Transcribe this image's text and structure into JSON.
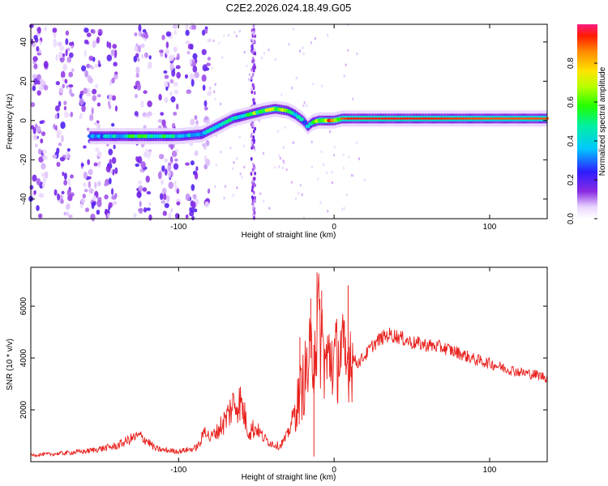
{
  "title": "C2E2.2026.024.18.49.G05",
  "chart_data": [
    {
      "type": "heatmap",
      "xlabel": "Height of straight line (km)",
      "ylabel": "Frequency (Hz)",
      "xlim": [
        -195,
        137
      ],
      "ylim": [
        -50,
        49
      ],
      "xticks": [
        -100,
        0,
        100
      ],
      "yticks": [
        -40,
        -20,
        0,
        20,
        40
      ],
      "colorbar": {
        "label": "Normalized spectral amplitude",
        "range": [
          0,
          1
        ],
        "ticks": [
          0.0,
          0.2,
          0.4,
          0.6,
          0.8
        ]
      },
      "ridge": {
        "x": [
          -157,
          -140,
          -120,
          -100,
          -85,
          -75,
          -65,
          -55,
          -50,
          -45,
          -38,
          -30,
          -25,
          -20,
          -17,
          -14,
          -10,
          -5,
          0,
          5,
          10,
          50,
          100,
          137
        ],
        "freq_hz": [
          -8,
          -8,
          -8,
          -8,
          -7,
          -3,
          1,
          3,
          4,
          5,
          6,
          5,
          3,
          0,
          -3,
          -1,
          0,
          0,
          0,
          1,
          1,
          1,
          1,
          1
        ],
        "amplitude": [
          0.35,
          0.45,
          0.6,
          0.45,
          0.4,
          0.4,
          0.5,
          0.55,
          0.65,
          0.7,
          0.75,
          0.55,
          0.5,
          0.4,
          0.35,
          0.55,
          0.8,
          0.85,
          0.8,
          0.9,
          0.95,
          0.95,
          0.9,
          0.9
        ]
      },
      "noise_x_range": [
        -195,
        -80
      ],
      "noise_columns_x": [
        -52
      ]
    },
    {
      "type": "line",
      "xlabel": "Height of straight line (km)",
      "ylabel": "SNR (10 * v/v)",
      "xlim": [
        -195,
        137
      ],
      "ylim": [
        0,
        7500
      ],
      "xticks": [
        -100,
        0,
        100
      ],
      "yticks": [
        2000,
        4000,
        6000
      ],
      "series": [
        {
          "name": "SNR",
          "color": "#e8201c",
          "x": [
            -195,
            -180,
            -160,
            -140,
            -130,
            -125,
            -120,
            -115,
            -110,
            -100,
            -90,
            -86,
            -83,
            -80,
            -75,
            -70,
            -65,
            -60,
            -55,
            -50,
            -45,
            -40,
            -35,
            -30,
            -25,
            -22,
            -20,
            -17,
            -14,
            -12,
            -10,
            -8,
            -6,
            -4,
            -2,
            0,
            2,
            4,
            6,
            8,
            10,
            12,
            15,
            20,
            25,
            30,
            35,
            40,
            50,
            60,
            70,
            80,
            90,
            100,
            110,
            120,
            130,
            137
          ],
          "y": [
            250,
            300,
            400,
            600,
            900,
            1000,
            800,
            500,
            450,
            400,
            500,
            700,
            1300,
            900,
            1200,
            1600,
            2200,
            2300,
            1200,
            1300,
            900,
            700,
            600,
            1000,
            2000,
            2600,
            3000,
            3600,
            4200,
            4800,
            5200,
            4800,
            3800,
            3800,
            4200,
            3800,
            4000,
            4300,
            4000,
            3500,
            4400,
            4000,
            3800,
            4100,
            4500,
            4750,
            4900,
            4850,
            4600,
            4500,
            4400,
            4200,
            3950,
            3800,
            3600,
            3450,
            3350,
            3250
          ],
          "spikes": [
            {
              "x": -11,
              "y": 7300
            },
            {
              "x": -15,
              "y": 6300
            },
            {
              "x": -8,
              "y": 6600
            },
            {
              "x": 9,
              "y": 6800
            },
            {
              "x": -13,
              "y": 200
            },
            {
              "x": -22,
              "y": 4800
            }
          ]
        }
      ]
    }
  ]
}
